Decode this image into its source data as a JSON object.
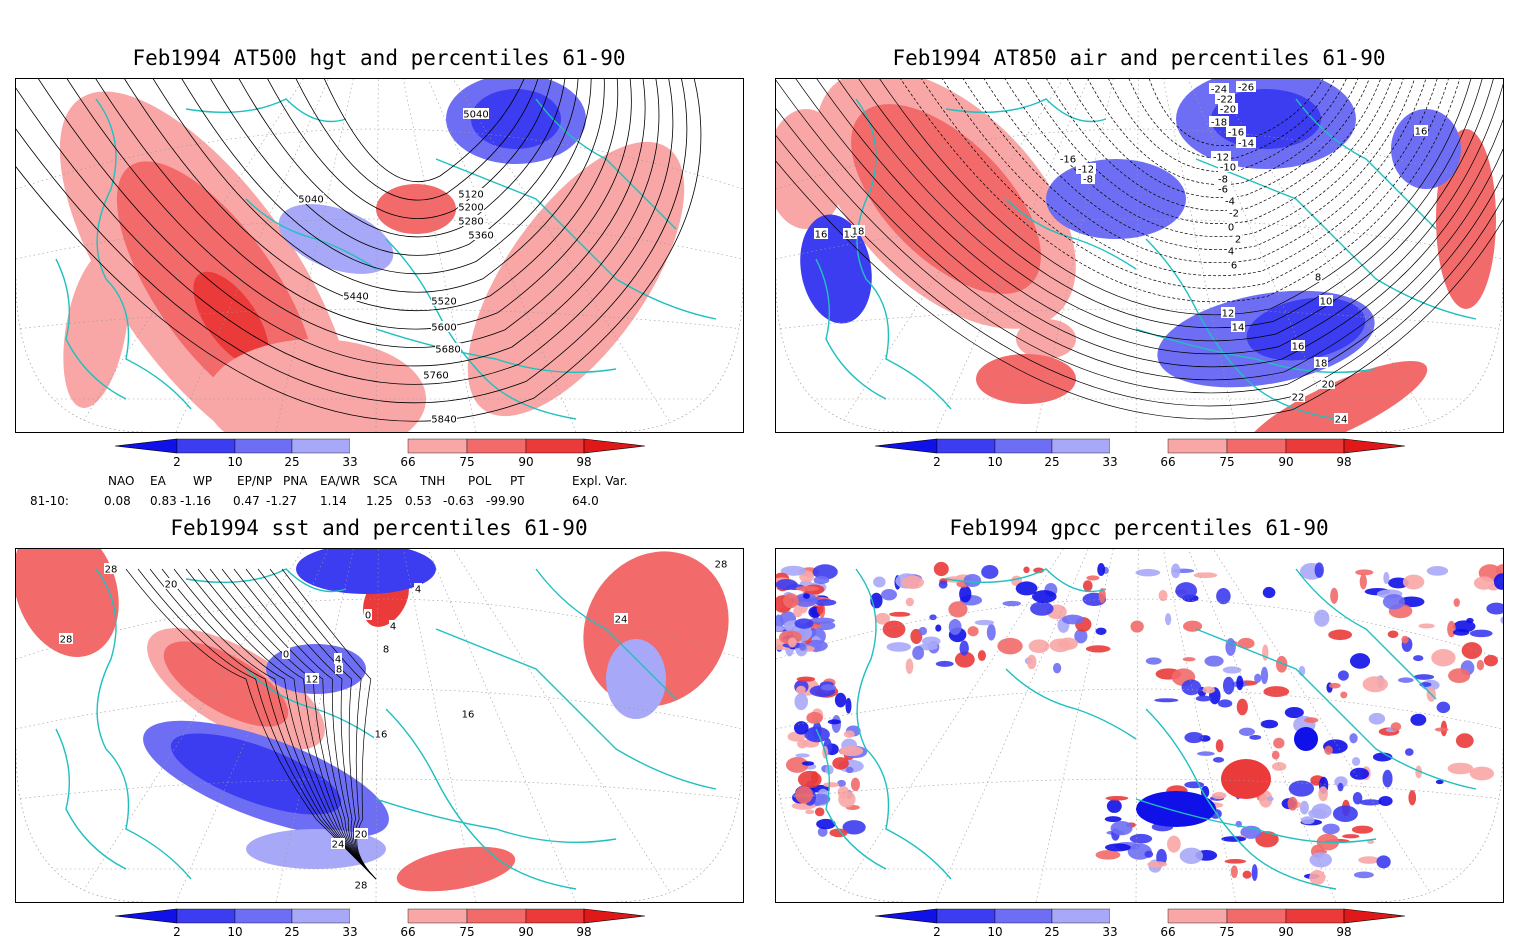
{
  "panels": [
    {
      "id": "p1",
      "title": "Feb1994 AT500 hgt and percentiles 61-90",
      "contour_labels": [
        "5040",
        "5120",
        "5200",
        "5280",
        "5360",
        "5040",
        "5440",
        "5520",
        "5600",
        "5680",
        "5760",
        "5840"
      ]
    },
    {
      "id": "p2",
      "title": "Feb1994 AT850 air and percentiles 61-90",
      "contour_labels": [
        "-26",
        "-24",
        "-22",
        "-20",
        "-18",
        "-16",
        "-14",
        "-12",
        "-10",
        "-8",
        "-6",
        "-4",
        "-2",
        "0",
        "2",
        "4",
        "6",
        "8",
        "10",
        "12",
        "14",
        "16",
        "18",
        "20",
        "22",
        "24",
        "-16",
        "-12",
        "-8",
        "16",
        "18",
        "18",
        "16"
      ]
    },
    {
      "id": "p3",
      "title": "Feb1994 sst and percentiles 61-90",
      "contour_labels": [
        "28",
        "28",
        "20",
        "0",
        "4",
        "8",
        "12",
        "16",
        "16",
        "20",
        "24",
        "28",
        "28",
        "24",
        "4",
        "0",
        "4",
        "8"
      ]
    },
    {
      "id": "p4",
      "title": "Feb1994 gpcc percentiles 61-90",
      "contour_labels": []
    }
  ],
  "colorbar": {
    "labels": [
      "2",
      "10",
      "25",
      "33",
      "66",
      "75",
      "90",
      "98"
    ],
    "colors": [
      "#1010e8",
      "#3c3cf0",
      "#6e6ef4",
      "#a8a8f8",
      "#ffffff",
      "#f9a6a6",
      "#f26a6a",
      "#ea3a3a",
      "#e01818"
    ]
  },
  "teleconnections": {
    "headers": [
      "NAO",
      "EA",
      "WP",
      "EP/NP",
      "PNA",
      "EA/WR",
      "SCA",
      "TNH",
      "POL",
      "PT",
      "Expl. Var."
    ],
    "row_label": "81-10:",
    "values": [
      "0.08",
      "0.83",
      "-1.16",
      "0.47",
      "-1.27",
      "1.14",
      "1.25",
      "0.53",
      "-0.63",
      "-99.90",
      "64.0"
    ]
  },
  "colors": {
    "coast": "#20c0c0",
    "warm": "#ea3a3a",
    "cold": "#3c3cf0",
    "contour": "#000000"
  }
}
